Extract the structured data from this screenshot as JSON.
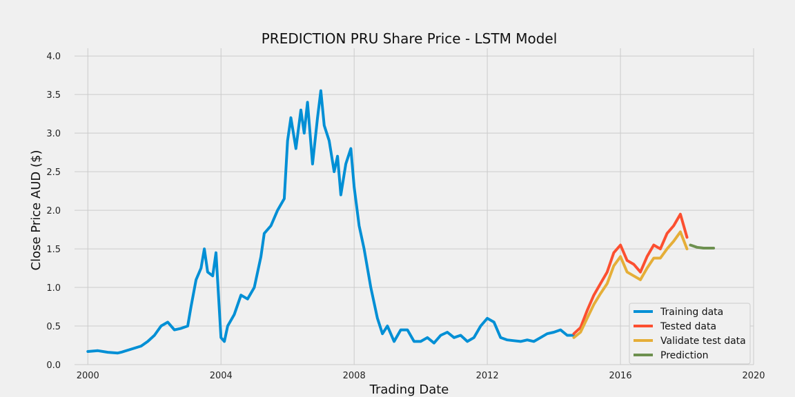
{
  "chart_data": {
    "type": "line",
    "title": "PREDICTION PRU Share Price - LSTM Model",
    "xlabel": "Trading Date",
    "ylabel": "Close Price AUD ($)",
    "xlim": [
      1999.6,
      2020.0
    ],
    "ylim": [
      0.0,
      4.1
    ],
    "x_ticks": [
      "2000",
      "2004",
      "2008",
      "2012",
      "2016",
      "2020"
    ],
    "y_ticks": [
      "0.0",
      "0.5",
      "1.0",
      "1.5",
      "2.0",
      "2.5",
      "3.0",
      "3.5",
      "4.0"
    ],
    "grid": true,
    "legend_position": "lower-right",
    "series": [
      {
        "name": "Training data",
        "color": "#008fd5",
        "x": [
          2000.0,
          2000.3,
          2000.6,
          2000.9,
          2001.0,
          2001.3,
          2001.6,
          2001.8,
          2002.0,
          2002.2,
          2002.4,
          2002.6,
          2002.8,
          2003.0,
          2003.1,
          2003.25,
          2003.4,
          2003.5,
          2003.6,
          2003.75,
          2003.85,
          2004.0,
          2004.1,
          2004.2,
          2004.4,
          2004.6,
          2004.8,
          2005.0,
          2005.2,
          2005.3,
          2005.5,
          2005.7,
          2005.9,
          2006.0,
          2006.1,
          2006.25,
          2006.4,
          2006.5,
          2006.6,
          2006.75,
          2006.9,
          2007.0,
          2007.1,
          2007.25,
          2007.4,
          2007.5,
          2007.6,
          2007.75,
          2007.9,
          2008.0,
          2008.15,
          2008.3,
          2008.5,
          2008.7,
          2008.85,
          2009.0,
          2009.2,
          2009.4,
          2009.6,
          2009.8,
          2010.0,
          2010.2,
          2010.4,
          2010.6,
          2010.8,
          2011.0,
          2011.2,
          2011.4,
          2011.6,
          2011.8,
          2012.0,
          2012.2,
          2012.4,
          2012.6,
          2012.8,
          2013.0,
          2013.2,
          2013.4,
          2013.6,
          2013.8,
          2014.0,
          2014.2,
          2014.4,
          2014.6
        ],
        "y": [
          0.17,
          0.18,
          0.16,
          0.15,
          0.16,
          0.2,
          0.24,
          0.3,
          0.38,
          0.5,
          0.55,
          0.45,
          0.47,
          0.5,
          0.75,
          1.1,
          1.25,
          1.5,
          1.2,
          1.15,
          1.45,
          0.35,
          0.3,
          0.5,
          0.65,
          0.9,
          0.85,
          1.0,
          1.4,
          1.7,
          1.8,
          2.0,
          2.15,
          2.9,
          3.2,
          2.8,
          3.3,
          3.0,
          3.4,
          2.6,
          3.2,
          3.55,
          3.1,
          2.9,
          2.5,
          2.7,
          2.2,
          2.6,
          2.8,
          2.3,
          1.8,
          1.5,
          1.0,
          0.6,
          0.4,
          0.5,
          0.3,
          0.45,
          0.45,
          0.3,
          0.3,
          0.35,
          0.28,
          0.38,
          0.42,
          0.35,
          0.38,
          0.3,
          0.35,
          0.5,
          0.6,
          0.55,
          0.35,
          0.32,
          0.31,
          0.3,
          0.32,
          0.3,
          0.35,
          0.4,
          0.42,
          0.45,
          0.38,
          0.38
        ]
      },
      {
        "name": "Tested data",
        "color": "#fc4f30",
        "x": [
          2014.6,
          2014.8,
          2015.0,
          2015.2,
          2015.4,
          2015.6,
          2015.8,
          2016.0,
          2016.2,
          2016.4,
          2016.6,
          2016.8,
          2017.0,
          2017.2,
          2017.4,
          2017.6,
          2017.8,
          2018.0
        ],
        "y": [
          0.4,
          0.48,
          0.7,
          0.9,
          1.05,
          1.2,
          1.45,
          1.55,
          1.35,
          1.3,
          1.2,
          1.4,
          1.55,
          1.5,
          1.7,
          1.8,
          1.95,
          1.65
        ]
      },
      {
        "name": "Validate test data",
        "color": "#e5ae38",
        "x": [
          2014.6,
          2014.8,
          2015.0,
          2015.2,
          2015.4,
          2015.6,
          2015.8,
          2016.0,
          2016.2,
          2016.4,
          2016.6,
          2016.8,
          2017.0,
          2017.2,
          2017.4,
          2017.6,
          2017.8,
          2018.0
        ],
        "y": [
          0.35,
          0.42,
          0.6,
          0.78,
          0.92,
          1.05,
          1.28,
          1.4,
          1.2,
          1.15,
          1.1,
          1.25,
          1.38,
          1.38,
          1.5,
          1.6,
          1.72,
          1.5
        ]
      },
      {
        "name": "Prediction",
        "color": "#6d904f",
        "x": [
          2018.1,
          2018.3,
          2018.5,
          2018.8
        ],
        "y": [
          1.55,
          1.52,
          1.51,
          1.51
        ]
      }
    ]
  }
}
